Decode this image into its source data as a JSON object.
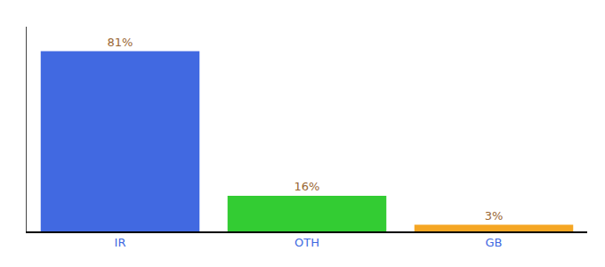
{
  "chart_data": {
    "type": "bar",
    "categories": [
      "IR",
      "OTH",
      "GB"
    ],
    "values": [
      81,
      16,
      3
    ],
    "value_labels": [
      "81%",
      "16%",
      "3%"
    ],
    "colors": [
      "#4169e1",
      "#33cc33",
      "#f5a623"
    ],
    "ylim": [
      0,
      92
    ],
    "grid": false,
    "data_labels": true,
    "tick_labels": "x"
  }
}
